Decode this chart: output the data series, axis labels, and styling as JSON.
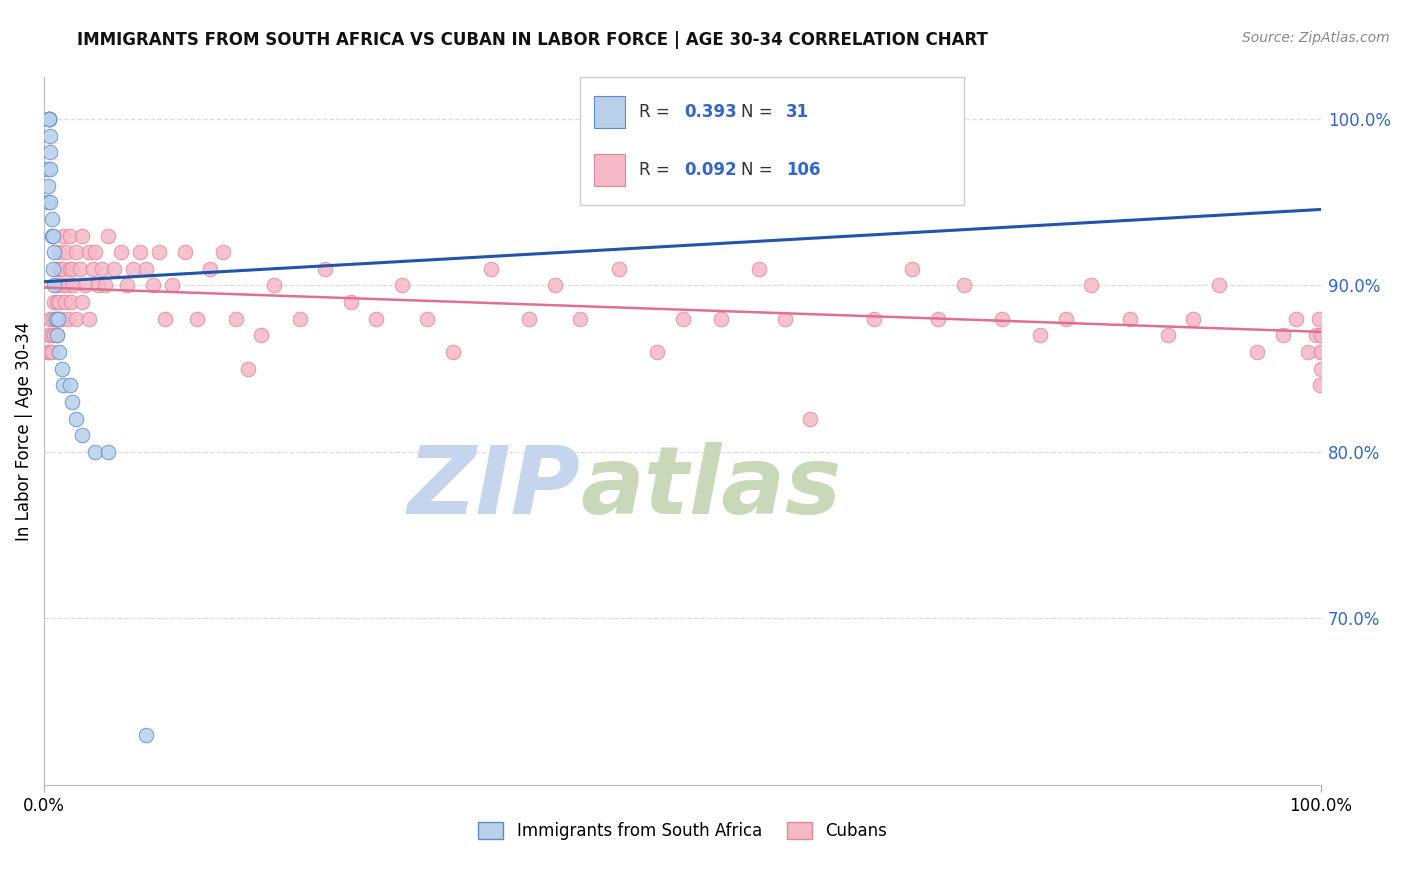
{
  "title": "IMMIGRANTS FROM SOUTH AFRICA VS CUBAN IN LABOR FORCE | AGE 30-34 CORRELATION CHART",
  "source": "Source: ZipAtlas.com",
  "ylabel_left": "In Labor Force | Age 30-34",
  "legend_label1": "Immigrants from South Africa",
  "legend_label2": "Cubans",
  "legend_R1": "0.393",
  "legend_N1": "31",
  "legend_R2": "0.092",
  "legend_N2": "106",
  "color_blue_fill": "#b8d0ea",
  "color_blue_edge": "#5b8dc8",
  "color_pink_fill": "#f5b8c8",
  "color_pink_edge": "#e08898",
  "color_blue_line": "#2255aa",
  "color_pink_line": "#e07090",
  "color_blue_text": "#3366cc",
  "color_right_tick": "#3366cc",
  "watermark_zip": "#c5d5ee",
  "watermark_atlas": "#c8d8b8",
  "background_color": "#ffffff",
  "grid_color": "#dddddd",
  "xlim": [
    0.0,
    1.0
  ],
  "ylim": [
    0.6,
    1.025
  ],
  "right_yticks": [
    0.7,
    0.8,
    0.9,
    1.0
  ],
  "right_yticklabels": [
    "70.0%",
    "80.0%",
    "90.0%",
    "100.0%"
  ],
  "xtick_locs": [
    0.0,
    1.0
  ],
  "xtick_labels": [
    "0.0%",
    "100.0%"
  ],
  "marker_size": 110,
  "sa_x": [
    0.002,
    0.003,
    0.003,
    0.004,
    0.004,
    0.004,
    0.004,
    0.005,
    0.005,
    0.005,
    0.005,
    0.006,
    0.006,
    0.007,
    0.007,
    0.008,
    0.008,
    0.009,
    0.01,
    0.011,
    0.012,
    0.014,
    0.015,
    0.02,
    0.022,
    0.025,
    0.03,
    0.04,
    0.05,
    0.08,
    0.5
  ],
  "sa_y": [
    0.97,
    0.96,
    0.95,
    1.0,
    1.0,
    1.0,
    1.0,
    0.95,
    0.97,
    0.98,
    0.99,
    0.93,
    0.94,
    0.91,
    0.93,
    0.9,
    0.92,
    0.88,
    0.87,
    0.88,
    0.86,
    0.85,
    0.84,
    0.84,
    0.83,
    0.82,
    0.81,
    0.8,
    0.8,
    0.63,
    1.0
  ],
  "cub_x": [
    0.003,
    0.004,
    0.005,
    0.005,
    0.006,
    0.006,
    0.007,
    0.008,
    0.008,
    0.009,
    0.01,
    0.01,
    0.01,
    0.011,
    0.011,
    0.012,
    0.012,
    0.013,
    0.013,
    0.014,
    0.015,
    0.015,
    0.016,
    0.017,
    0.018,
    0.019,
    0.02,
    0.02,
    0.021,
    0.022,
    0.023,
    0.025,
    0.025,
    0.028,
    0.03,
    0.03,
    0.032,
    0.035,
    0.035,
    0.038,
    0.04,
    0.042,
    0.045,
    0.048,
    0.05,
    0.055,
    0.06,
    0.065,
    0.07,
    0.075,
    0.08,
    0.085,
    0.09,
    0.095,
    0.1,
    0.11,
    0.12,
    0.13,
    0.14,
    0.15,
    0.16,
    0.17,
    0.18,
    0.2,
    0.22,
    0.24,
    0.26,
    0.28,
    0.3,
    0.32,
    0.35,
    0.38,
    0.4,
    0.42,
    0.45,
    0.48,
    0.5,
    0.53,
    0.56,
    0.58,
    0.6,
    0.63,
    0.65,
    0.68,
    0.7,
    0.72,
    0.75,
    0.78,
    0.8,
    0.82,
    0.85,
    0.88,
    0.9,
    0.92,
    0.95,
    0.97,
    0.98,
    0.99,
    0.996,
    0.998,
    0.999,
    1.0,
    1.0,
    1.0,
    1.0,
    1.0
  ],
  "cub_y": [
    0.86,
    0.87,
    0.88,
    0.86,
    0.87,
    0.86,
    0.88,
    0.89,
    0.87,
    0.88,
    0.9,
    0.89,
    0.87,
    0.91,
    0.88,
    0.92,
    0.89,
    0.91,
    0.88,
    0.9,
    0.93,
    0.91,
    0.89,
    0.92,
    0.9,
    0.88,
    0.93,
    0.91,
    0.89,
    0.91,
    0.9,
    0.92,
    0.88,
    0.91,
    0.93,
    0.89,
    0.9,
    0.92,
    0.88,
    0.91,
    0.92,
    0.9,
    0.91,
    0.9,
    0.93,
    0.91,
    0.92,
    0.9,
    0.91,
    0.92,
    0.91,
    0.9,
    0.92,
    0.88,
    0.9,
    0.92,
    0.88,
    0.91,
    0.92,
    0.88,
    0.85,
    0.87,
    0.9,
    0.88,
    0.91,
    0.89,
    0.88,
    0.9,
    0.88,
    0.86,
    0.91,
    0.88,
    0.9,
    0.88,
    0.91,
    0.86,
    0.88,
    0.88,
    0.91,
    0.88,
    0.82,
    0.97,
    0.88,
    0.91,
    0.88,
    0.9,
    0.88,
    0.87,
    0.88,
    0.9,
    0.88,
    0.87,
    0.88,
    0.9,
    0.86,
    0.87,
    0.88,
    0.86,
    0.87,
    0.88,
    0.84,
    0.86,
    0.87,
    0.85,
    0.86,
    0.87
  ]
}
